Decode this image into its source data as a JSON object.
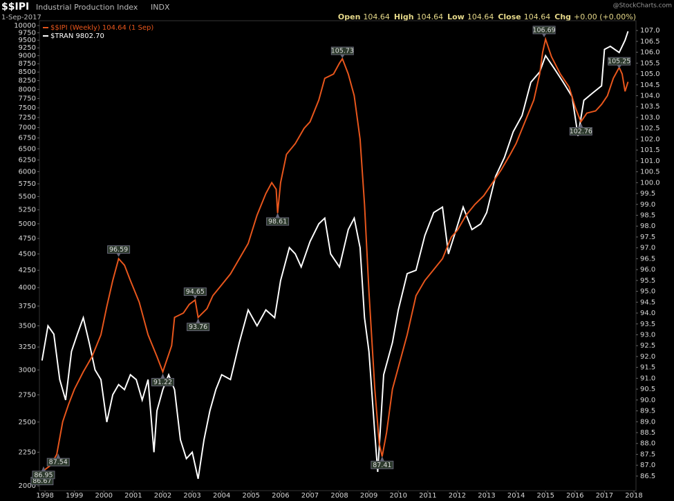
{
  "chart_data": {
    "type": "line",
    "symbol": "$$IPI",
    "title": "Industrial Production Index",
    "exchange": "INDX",
    "date": "1-Sep-2017",
    "quote": [
      {
        "label": "Open",
        "value": 104.64
      },
      {
        "label": "High",
        "value": 104.64
      },
      {
        "label": "Low",
        "value": 104.64
      },
      {
        "label": "Close",
        "value": 104.64
      }
    ],
    "change_label": "Chg",
    "change": "+0.00 (+0.00%)",
    "watermark": "@StockCharts.com",
    "xlim": [
      1997.81,
      2018.07
    ],
    "xticks": [
      1998,
      1999,
      2000,
      2001,
      2002,
      2003,
      2004,
      2005,
      2006,
      2007,
      2008,
      2009,
      2010,
      2011,
      2012,
      2013,
      2014,
      2015,
      2016,
      2017,
      2018
    ],
    "ylim": [
      1967,
      10170
    ],
    "log_y": true,
    "yticks": [
      2000,
      2250,
      2500,
      2750,
      3000,
      3250,
      3500,
      3750,
      4000,
      4250,
      4500,
      4750,
      5000,
      5250,
      5500,
      5750,
      6000,
      6250,
      6500,
      6750,
      7000,
      7250,
      7500,
      7750,
      8000,
      8250,
      8500,
      8750,
      9000,
      9250,
      9500,
      9750,
      10000
    ],
    "y2lim": [
      85.83,
      107.45
    ],
    "y2ticks": [
      86.5,
      {
        "value": 87,
        "label": "87.0"
      },
      87.5,
      {
        "value": 88,
        "label": "88.0"
      },
      88.5,
      {
        "value": 89,
        "label": "89.0"
      },
      89.5,
      {
        "value": 90,
        "label": "90.0"
      },
      90.5,
      {
        "value": 91,
        "label": "91.0"
      },
      91.5,
      {
        "value": 92,
        "label": "92.0"
      },
      92.5,
      {
        "value": 93,
        "label": "93.0"
      },
      93.5,
      {
        "value": 94,
        "label": "94.0"
      },
      94.5,
      {
        "value": 95,
        "label": "95.0"
      },
      95.5,
      {
        "value": 96,
        "label": "96.0"
      },
      96.5,
      {
        "value": 97,
        "label": "97.0"
      },
      97.5,
      {
        "value": 98,
        "label": "98.0"
      },
      98.5,
      {
        "value": 99,
        "label": "99.0"
      },
      99.5,
      {
        "value": 100,
        "label": "100.0"
      },
      100.5,
      {
        "value": 101,
        "label": "101.0"
      },
      101.5,
      {
        "value": 102,
        "label": "102.0"
      },
      102.5,
      {
        "value": 103,
        "label": "103.0"
      },
      103.5,
      {
        "value": 104,
        "label": "104.0"
      },
      104.5,
      {
        "value": 105,
        "label": "105.0"
      },
      105.5,
      {
        "value": 106,
        "label": "106.0"
      },
      106.5,
      {
        "value": 107,
        "label": "107.0"
      }
    ],
    "grid": false,
    "background": "#000000",
    "series": [
      {
        "name": "$$IPI (Weekly) 104.64 (1 Sep)",
        "color": "#e8561c",
        "axis": "y2",
        "x": [
          1997.9,
          1998.2,
          1998.4,
          1998.6,
          1998.8,
          1999.0,
          1999.3,
          1999.6,
          1999.9,
          2000.1,
          2000.3,
          2000.5,
          2000.7,
          2000.9,
          2001.2,
          2001.5,
          2001.8,
          2002.0,
          2002.3,
          2002.4,
          2002.7,
          2002.9,
          2003.1,
          2003.2,
          2003.5,
          2003.7,
          2004.0,
          2004.3,
          2004.6,
          2004.9,
          2005.2,
          2005.5,
          2005.7,
          2005.85,
          2005.9,
          2006.0,
          2006.2,
          2006.5,
          2006.8,
          2007.0,
          2007.3,
          2007.5,
          2007.8,
          2008.0,
          2008.1,
          2008.3,
          2008.5,
          2008.7,
          2008.85,
          2009.0,
          2009.2,
          2009.35,
          2009.45,
          2009.6,
          2009.8,
          2010.0,
          2010.3,
          2010.6,
          2010.9,
          2011.2,
          2011.5,
          2011.8,
          2012.0,
          2012.3,
          2012.6,
          2012.9,
          2013.2,
          2013.5,
          2013.8,
          2014.0,
          2014.3,
          2014.6,
          2014.8,
          2014.9,
          2015.0,
          2015.2,
          2015.5,
          2015.8,
          2016.0,
          2016.2,
          2016.4,
          2016.7,
          2016.9,
          2017.1,
          2017.3,
          2017.5,
          2017.6,
          2017.7,
          2017.8
        ],
        "values": [
          86.7,
          87.0,
          87.5,
          89.0,
          89.8,
          90.5,
          91.3,
          92.0,
          93.0,
          94.3,
          95.5,
          96.5,
          96.2,
          95.5,
          94.5,
          93.0,
          92.0,
          91.3,
          92.5,
          93.8,
          94.0,
          94.4,
          94.6,
          93.8,
          94.2,
          94.8,
          95.3,
          95.8,
          96.5,
          97.2,
          98.5,
          99.5,
          100.0,
          99.7,
          98.6,
          100.0,
          101.3,
          101.8,
          102.5,
          102.8,
          103.8,
          104.8,
          105.0,
          105.5,
          105.7,
          105.0,
          104.0,
          102.0,
          99.0,
          95.0,
          90.5,
          88.0,
          87.4,
          88.5,
          90.5,
          91.5,
          93.0,
          94.8,
          95.5,
          96.0,
          96.5,
          97.5,
          97.8,
          98.5,
          99.0,
          99.4,
          100.0,
          100.6,
          101.3,
          101.8,
          102.8,
          103.8,
          105.0,
          106.0,
          106.6,
          105.8,
          105.0,
          104.4,
          103.5,
          102.8,
          103.2,
          103.3,
          103.6,
          104.0,
          104.8,
          105.3,
          105.0,
          104.2,
          104.64
        ]
      },
      {
        "name": "$TRAN 9802.70",
        "color": "#ffffff",
        "x": [
          1997.9,
          1998.1,
          1998.3,
          1998.5,
          1998.7,
          1998.9,
          1999.1,
          1999.3,
          1999.5,
          1999.7,
          1999.9,
          2000.1,
          2000.3,
          2000.5,
          2000.7,
          2000.9,
          2001.1,
          2001.3,
          2001.5,
          2001.7,
          2001.8,
          2002.0,
          2002.2,
          2002.4,
          2002.6,
          2002.8,
          2003.0,
          2003.2,
          2003.4,
          2003.6,
          2003.8,
          2004.0,
          2004.3,
          2004.6,
          2004.9,
          2005.2,
          2005.5,
          2005.8,
          2006.0,
          2006.3,
          2006.5,
          2006.7,
          2007.0,
          2007.3,
          2007.5,
          2007.7,
          2008.0,
          2008.3,
          2008.5,
          2008.7,
          2008.85,
          2009.0,
          2009.2,
          2009.3,
          2009.5,
          2009.8,
          2010.0,
          2010.3,
          2010.6,
          2010.9,
          2011.2,
          2011.5,
          2011.7,
          2011.9,
          2012.2,
          2012.5,
          2012.8,
          2013.0,
          2013.3,
          2013.6,
          2013.9,
          2014.2,
          2014.5,
          2014.8,
          2015.0,
          2015.3,
          2015.6,
          2015.9,
          2016.1,
          2016.3,
          2016.6,
          2016.9,
          2017.0,
          2017.2,
          2017.5,
          2017.7,
          2017.8
        ],
        "values": [
          3100,
          3500,
          3400,
          2900,
          2700,
          3200,
          3400,
          3600,
          3300,
          3000,
          2900,
          2500,
          2750,
          2850,
          2800,
          2950,
          2900,
          2700,
          2900,
          2250,
          2600,
          2800,
          2950,
          2800,
          2350,
          2200,
          2250,
          2050,
          2350,
          2600,
          2800,
          2950,
          2900,
          3300,
          3700,
          3500,
          3700,
          3600,
          4100,
          4600,
          4500,
          4300,
          4700,
          5000,
          5100,
          4500,
          4300,
          4900,
          5100,
          4600,
          3600,
          3200,
          2400,
          2100,
          2950,
          3300,
          3700,
          4200,
          4250,
          4800,
          5200,
          5300,
          4500,
          4800,
          5300,
          4900,
          5000,
          5200,
          5900,
          6300,
          6900,
          7300,
          8200,
          8500,
          9000,
          8600,
          8200,
          7800,
          6800,
          7700,
          7900,
          8100,
          9200,
          9300,
          9100,
          9500,
          9800
        ]
      }
    ],
    "annotations": [
      {
        "x": 1997.9,
        "value": 86.67
      },
      {
        "x": 1998.45,
        "value": 87.54
      },
      {
        "x": 1997.95,
        "value": 86.95
      },
      {
        "x": 2000.5,
        "value": 96.59
      },
      {
        "x": 2002.0,
        "value": 91.22
      },
      {
        "x": 2003.1,
        "value": 94.65
      },
      {
        "x": 2003.2,
        "value": 93.76
      },
      {
        "x": 2005.9,
        "value": 98.61
      },
      {
        "x": 2008.1,
        "value": 105.73
      },
      {
        "x": 2009.45,
        "value": 87.41
      },
      {
        "x": 2014.95,
        "value": 106.69
      },
      {
        "x": 2016.2,
        "value": 102.76
      },
      {
        "x": 2017.5,
        "value": 105.25
      }
    ]
  }
}
